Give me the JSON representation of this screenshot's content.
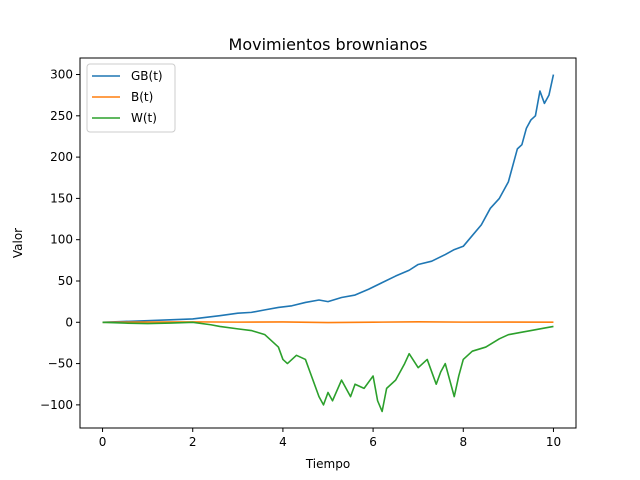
{
  "chart_data": {
    "type": "line",
    "title": "Movimientos brownianos",
    "xlabel": "Tiempo",
    "ylabel": "Valor",
    "xlim": [
      -0.5,
      10.5
    ],
    "ylim": [
      -128,
      320
    ],
    "x_ticks": [
      0,
      2,
      4,
      6,
      8,
      10
    ],
    "x_tick_labels": [
      "0",
      "2",
      "4",
      "6",
      "8",
      "10"
    ],
    "y_ticks": [
      -100,
      -50,
      0,
      50,
      100,
      150,
      200,
      250,
      300
    ],
    "y_tick_labels": [
      "−100",
      "−50",
      "0",
      "50",
      "100",
      "150",
      "200",
      "250",
      "300"
    ],
    "grid": false,
    "legend_position": "top-left",
    "series": [
      {
        "name": "GB(t)",
        "color": "#1f77b4",
        "x": [
          0,
          0.5,
          1.0,
          1.5,
          2.0,
          2.3,
          2.6,
          3.0,
          3.3,
          3.6,
          3.9,
          4.2,
          4.5,
          4.8,
          5.0,
          5.3,
          5.6,
          5.9,
          6.2,
          6.5,
          6.8,
          7.0,
          7.3,
          7.6,
          7.8,
          8.0,
          8.2,
          8.4,
          8.6,
          8.8,
          9.0,
          9.2,
          9.3,
          9.4,
          9.5,
          9.6,
          9.7,
          9.8,
          9.9,
          10.0
        ],
        "y": [
          0,
          1,
          2,
          3,
          4,
          6,
          8,
          11,
          12,
          15,
          18,
          20,
          24,
          27,
          25,
          30,
          33,
          40,
          48,
          56,
          63,
          70,
          74,
          82,
          88,
          92,
          105,
          118,
          138,
          150,
          170,
          210,
          215,
          235,
          245,
          250,
          280,
          265,
          275,
          300
        ]
      },
      {
        "name": "B(t)",
        "color": "#ff7f0e",
        "x": [
          0,
          1,
          2,
          3,
          4,
          5,
          6,
          7,
          8,
          9,
          10
        ],
        "y": [
          0,
          0.3,
          0.5,
          0.2,
          0.4,
          -0.3,
          0.1,
          0.6,
          0.2,
          0.3,
          0.1
        ]
      },
      {
        "name": "W(t)",
        "color": "#2ca02c",
        "x": [
          0,
          0.5,
          1.0,
          1.5,
          2.0,
          2.4,
          2.6,
          3.0,
          3.3,
          3.6,
          3.9,
          4.0,
          4.1,
          4.3,
          4.5,
          4.6,
          4.8,
          4.9,
          5.0,
          5.1,
          5.3,
          5.5,
          5.6,
          5.8,
          6.0,
          6.1,
          6.2,
          6.3,
          6.5,
          6.7,
          6.8,
          7.0,
          7.2,
          7.4,
          7.5,
          7.6,
          7.8,
          7.9,
          8.0,
          8.2,
          8.5,
          8.8,
          9.0,
          9.3,
          9.5,
          9.8,
          10.0
        ],
        "y": [
          0,
          -1,
          -1.5,
          -1,
          0,
          -3,
          -5,
          -8,
          -10,
          -15,
          -30,
          -45,
          -50,
          -40,
          -45,
          -60,
          -90,
          -100,
          -85,
          -95,
          -70,
          -90,
          -75,
          -80,
          -65,
          -95,
          -108,
          -80,
          -70,
          -50,
          -38,
          -55,
          -45,
          -75,
          -60,
          -50,
          -90,
          -65,
          -45,
          -35,
          -30,
          -20,
          -15,
          -12,
          -10,
          -7,
          -5
        ]
      }
    ]
  }
}
